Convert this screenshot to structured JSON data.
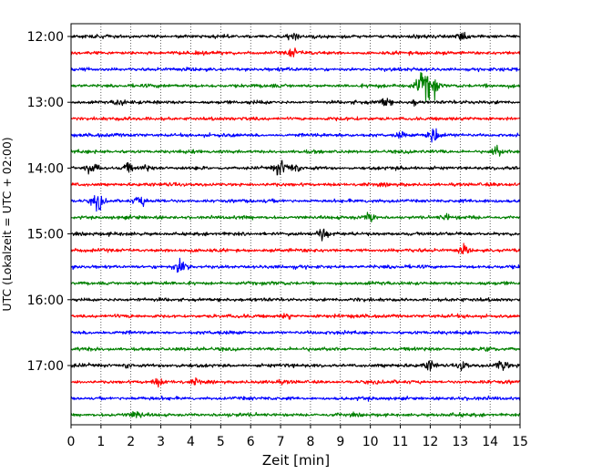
{
  "chart_data": {
    "type": "line",
    "title": "",
    "xlabel": "Zeit  [min]",
    "ylabel": "UTC (Lokalzeit = UTC + 02:00)",
    "xlim": [
      0,
      15
    ],
    "x_ticks": [
      0,
      1,
      2,
      3,
      4,
      5,
      6,
      7,
      8,
      9,
      10,
      11,
      12,
      13,
      14,
      15
    ],
    "y_ticks": [
      "12:00",
      "13:00",
      "14:00",
      "15:00",
      "16:00",
      "17:00"
    ],
    "grid": "vertical dotted",
    "trace_interval_min": 15,
    "color_cycle": [
      "#000000",
      "#ff0000",
      "#0000ff",
      "#008000"
    ],
    "traces": [
      {
        "start": "12:00",
        "color": "#000000",
        "events": [
          [
            7.4,
            0.5
          ],
          [
            13.1,
            0.5
          ]
        ]
      },
      {
        "start": "12:15",
        "color": "#ff0000",
        "events": [
          [
            7.4,
            0.5
          ]
        ]
      },
      {
        "start": "12:30",
        "color": "#0000ff",
        "events": []
      },
      {
        "start": "12:45",
        "color": "#008000",
        "events": [
          [
            11.8,
            1.8
          ],
          [
            12.1,
            1.0
          ]
        ]
      },
      {
        "start": "13:00",
        "color": "#000000",
        "events": [
          [
            1.6,
            0.5
          ],
          [
            10.5,
            0.5
          ],
          [
            11.5,
            0.4
          ]
        ]
      },
      {
        "start": "13:15",
        "color": "#ff0000",
        "events": []
      },
      {
        "start": "13:30",
        "color": "#0000ff",
        "events": [
          [
            12.1,
            1.0
          ],
          [
            11.0,
            0.4
          ]
        ]
      },
      {
        "start": "13:45",
        "color": "#008000",
        "events": [
          [
            14.2,
            0.7
          ]
        ]
      },
      {
        "start": "14:00",
        "color": "#000000",
        "events": [
          [
            0.7,
            0.8
          ],
          [
            1.9,
            0.6
          ],
          [
            7.0,
            1.0
          ],
          [
            7.5,
            0.6
          ],
          [
            2.5,
            0.4
          ]
        ]
      },
      {
        "start": "14:15",
        "color": "#ff0000",
        "events": []
      },
      {
        "start": "14:30",
        "color": "#0000ff",
        "events": [
          [
            0.9,
            1.0
          ],
          [
            2.3,
            0.6
          ]
        ]
      },
      {
        "start": "14:45",
        "color": "#008000",
        "events": [
          [
            10.0,
            0.6
          ],
          [
            12.5,
            0.4
          ]
        ]
      },
      {
        "start": "15:00",
        "color": "#000000",
        "events": [
          [
            8.4,
            0.8
          ]
        ]
      },
      {
        "start": "15:15",
        "color": "#ff0000",
        "events": [
          [
            13.1,
            0.6
          ]
        ]
      },
      {
        "start": "15:30",
        "color": "#0000ff",
        "events": [
          [
            3.7,
            1.0
          ]
        ]
      },
      {
        "start": "15:45",
        "color": "#008000",
        "events": []
      },
      {
        "start": "16:00",
        "color": "#000000",
        "events": []
      },
      {
        "start": "16:15",
        "color": "#ff0000",
        "events": [
          [
            7.2,
            0.4
          ]
        ]
      },
      {
        "start": "16:30",
        "color": "#0000ff",
        "events": []
      },
      {
        "start": "16:45",
        "color": "#008000",
        "events": [
          [
            14.0,
            0.6
          ]
        ]
      },
      {
        "start": "17:00",
        "color": "#000000",
        "events": [
          [
            12.0,
            0.7
          ],
          [
            13.1,
            0.6
          ],
          [
            14.4,
            0.7
          ],
          [
            1.9,
            0.4
          ]
        ]
      },
      {
        "start": "17:15",
        "color": "#ff0000",
        "events": [
          [
            2.9,
            0.4
          ],
          [
            4.2,
            0.4
          ]
        ]
      },
      {
        "start": "17:30",
        "color": "#0000ff",
        "events": []
      },
      {
        "start": "17:45",
        "color": "#008000",
        "events": [
          [
            2.2,
            0.5
          ]
        ]
      }
    ]
  }
}
